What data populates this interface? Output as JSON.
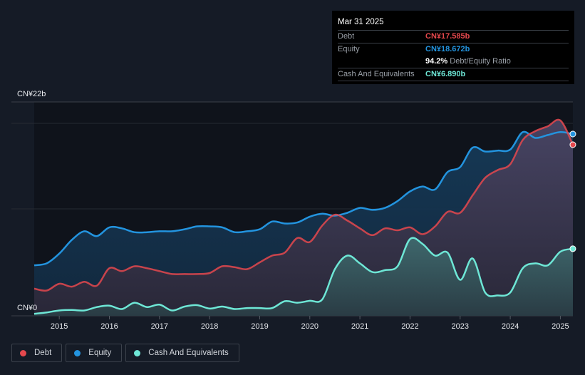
{
  "tooltip": {
    "date": "Mar 31 2025",
    "rows": [
      {
        "label": "Debt",
        "value": "CN¥17.585b",
        "color": "#e5484d"
      },
      {
        "label": "Equity",
        "value": "CN¥18.672b",
        "color": "#2394df"
      },
      {
        "label": "",
        "value": "94.2%",
        "suffix": "Debt/Equity Ratio"
      },
      {
        "label": "Cash And Equivalents",
        "value": "CN¥6.890b",
        "color": "#6ee7d6"
      }
    ]
  },
  "legend": [
    {
      "label": "Debt",
      "color": "#e5484d"
    },
    {
      "label": "Equity",
      "color": "#2394df"
    },
    {
      "label": "Cash And Equivalents",
      "color": "#6ee7d6"
    }
  ],
  "chart_data": {
    "type": "area",
    "title": "",
    "xlabel": "",
    "ylabel": "",
    "ylim": [
      0,
      22
    ],
    "xlim": [
      2014.5,
      2025.25
    ],
    "y_tick_labels": [
      "CN¥0",
      "CN¥22b"
    ],
    "x_tick_labels": [
      "2015",
      "2016",
      "2017",
      "2018",
      "2019",
      "2020",
      "2021",
      "2022",
      "2023",
      "2024",
      "2025"
    ],
    "grid": true,
    "legend_position": "bottom-left",
    "unit": "CN¥ billions",
    "x": [
      2014.5,
      2014.75,
      2015.0,
      2015.25,
      2015.5,
      2015.75,
      2016.0,
      2016.25,
      2016.5,
      2016.75,
      2017.0,
      2017.25,
      2017.5,
      2017.75,
      2018.0,
      2018.25,
      2018.5,
      2018.75,
      2019.0,
      2019.25,
      2019.5,
      2019.75,
      2020.0,
      2020.25,
      2020.5,
      2020.75,
      2021.0,
      2021.25,
      2021.5,
      2021.75,
      2022.0,
      2022.25,
      2022.5,
      2022.75,
      2023.0,
      2023.25,
      2023.5,
      2023.75,
      2024.0,
      2024.25,
      2024.5,
      2024.75,
      2025.0,
      2025.25
    ],
    "series": [
      {
        "name": "Debt",
        "color": "#e5484d",
        "values": [
          2.8,
          2.6,
          3.3,
          3.0,
          3.5,
          3.1,
          4.9,
          4.6,
          5.1,
          4.9,
          4.6,
          4.3,
          4.3,
          4.3,
          4.4,
          5.1,
          5.0,
          4.8,
          5.5,
          6.2,
          6.5,
          8.0,
          7.6,
          9.3,
          10.4,
          9.8,
          9.0,
          8.3,
          9.0,
          8.8,
          9.1,
          8.4,
          9.2,
          10.7,
          10.6,
          12.4,
          14.2,
          15.0,
          15.6,
          18.1,
          19.0,
          19.5,
          20.1,
          17.6
        ]
      },
      {
        "name": "Equity",
        "color": "#2394df",
        "values": [
          5.2,
          5.4,
          6.4,
          7.8,
          8.7,
          8.2,
          9.1,
          9.0,
          8.6,
          8.6,
          8.7,
          8.7,
          8.9,
          9.2,
          9.2,
          9.1,
          8.6,
          8.7,
          8.9,
          9.7,
          9.5,
          9.6,
          10.2,
          10.5,
          10.3,
          10.6,
          11.1,
          10.9,
          11.1,
          11.8,
          12.8,
          13.3,
          13.0,
          14.8,
          15.3,
          17.3,
          16.9,
          17.0,
          17.1,
          18.9,
          18.3,
          18.6,
          18.9,
          18.7
        ]
      },
      {
        "name": "Cash And Equivalents",
        "color": "#6ee7d6",
        "values": [
          0.2,
          0.35,
          0.55,
          0.6,
          0.55,
          0.9,
          1.05,
          0.7,
          1.35,
          0.9,
          1.15,
          0.55,
          0.95,
          1.1,
          0.75,
          0.95,
          0.7,
          0.8,
          0.8,
          0.8,
          1.5,
          1.35,
          1.55,
          1.7,
          4.8,
          6.2,
          5.4,
          4.5,
          4.7,
          5.1,
          7.9,
          7.4,
          6.2,
          6.5,
          3.7,
          5.9,
          2.4,
          2.1,
          2.4,
          4.9,
          5.4,
          5.2,
          6.6,
          6.9
        ]
      }
    ]
  }
}
